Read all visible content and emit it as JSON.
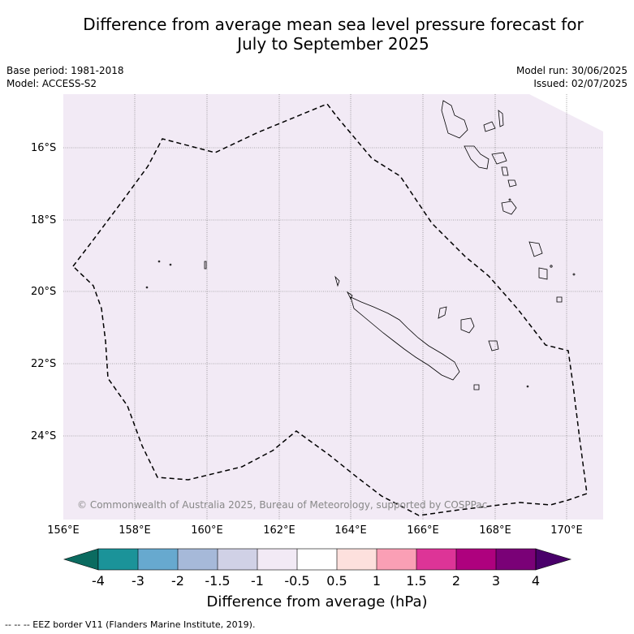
{
  "title_line1": "Difference from average mean sea level pressure forecast for",
  "title_line2": "July to September 2025",
  "base_period": "Base period: 1981-2018",
  "model": "Model: ACCESS-S2",
  "model_run": "Model run: 30/06/2025",
  "issued": "Issued: 02/07/2025",
  "lat_labels": [
    "16°S",
    "18°S",
    "20°S",
    "22°S",
    "24°S"
  ],
  "lon_labels": [
    "156°E",
    "158°E",
    "160°E",
    "162°E",
    "164°E",
    "166°E",
    "168°E",
    "170°E"
  ],
  "copyright": "© Commonwealth of Australia 2025, Bureau of Meteorology, supported by COSPPac",
  "colorbar": {
    "title": "Difference from average (hPa)",
    "tick_labels": [
      "-4",
      "-3",
      "-2",
      "-1.5",
      "-1",
      "-0.5",
      "0.5",
      "1",
      "1.5",
      "2",
      "3",
      "4"
    ],
    "colors": {
      "below": "#0b6b60",
      "bins": [
        "#1b9399",
        "#67a9cf",
        "#a6b9d9",
        "#d0d1e6",
        "#f2eaf5",
        "#ffffff",
        "#fde0dd",
        "#fa9fb5",
        "#dd3497",
        "#ae017e",
        "#7a0177"
      ],
      "above": "#49006a"
    }
  },
  "map_fill_color": "#f2eaf5",
  "footer": "-- -- -- EEZ border V11 (Flanders Marine Institute, 2019)."
}
